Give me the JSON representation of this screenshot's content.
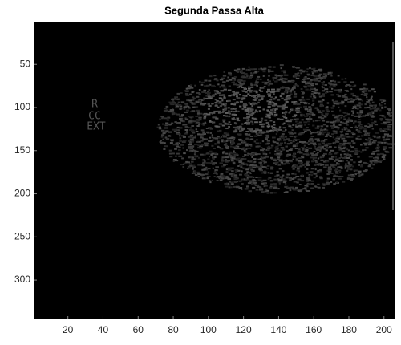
{
  "chart_data": {
    "type": "image",
    "title": "Segunda Passa Alta",
    "annotations": [
      "R",
      "CC",
      "EXT"
    ],
    "xlim": [
      0.5,
      206.5
    ],
    "ylim": [
      0.5,
      345.5
    ],
    "y_reversed": true,
    "xticks": [
      20,
      40,
      60,
      80,
      100,
      120,
      140,
      160,
      180,
      200
    ],
    "yticks": [
      50,
      100,
      150,
      200,
      250,
      300
    ]
  }
}
